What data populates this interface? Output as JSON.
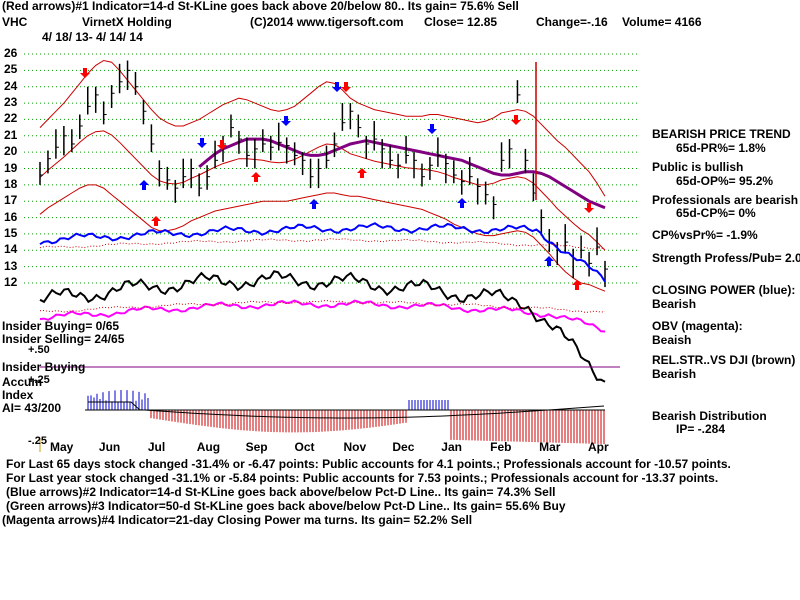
{
  "header": {
    "line1": "(Red arrows)#1 Indicator=14-d St-KLine goes back above 20/below 80.. Its gain= 75.6% Sell",
    "ticker": "VHC",
    "company": "VirnetX Holding",
    "copyright": "(C)2014 www.tigersoft.com",
    "close": "Close=  12.85",
    "change": "Change=-.16",
    "volume": "Volume= 4166",
    "date_range": "4/ 18/ 13-  4/ 14/ 14"
  },
  "right_panel": {
    "trend_title": "BEARISH PRICE TREND",
    "pr": "65d-PR%= 1.8%",
    "public_title": "Public is bullish",
    "op": "65d-OP%= 95.2%",
    "pros_title": "Professionals are bearish",
    "cp": "65d-CP%= 0%",
    "cpvspr": "CP%vsPr%= -1.9%",
    "strength": "Strength Profess/Pub= 2.0",
    "closing_power": "CLOSING POWER (blue):",
    "closing_power_val": "Bearish",
    "obv": "OBV (magenta):",
    "obv_val": "Beaish",
    "relstr": "REL.STR..VS DJI (brown)",
    "relstr_val": "Bearish",
    "distribution": "Bearish Distribution",
    "ip": "IP= -.284"
  },
  "left_panel": {
    "insider_buying": "Insider Buying= 0/65",
    "insider_selling": "Insider Selling= 24/65",
    "plus50": "+.50",
    "insider_buying2": "Insider Buying",
    "accum": "Accum",
    "plus25": "+.25",
    "index": "Index",
    "ai": "AI= 43/200",
    "minus25": "-.25"
  },
  "footer": {
    "line1": "For Last 65 days stock changed -31.4% or -6.47 points:  Public accounts for  4.1 points.;  Professionals account for -10.57 points.",
    "line2": "For Last year stock changed -31.1% or -5.84 points:  Public accounts for  7.53 points.;  Professionals account for -13.37 points.",
    "line3": "(Blue arrows)#2 Indicator=14-d St-KLine goes back above/below Pct-D Line.. Its gain= 74.3% Sell",
    "line4": "(Green arrows)#3 Indicator=50-d St-KLine goes back above/below Pct-D Line.. Its gain= 55.6% Buy",
    "line5": "(Magenta arrows)#4 Indicator=21-day Closing Power ma turns. Its gain= 52.2% Sell"
  },
  "chart_data": {
    "type": "line",
    "ylim": [
      11,
      26.5
    ],
    "y_ticks": [
      "26",
      "25",
      "24",
      "23",
      "22",
      "21",
      "20",
      "19",
      "18",
      "17",
      "16",
      "15",
      "14",
      "13",
      "12"
    ],
    "x_ticks": [
      "May",
      "Jun",
      "Jul",
      "Aug",
      "Sep",
      "Oct",
      "Nov",
      "Dec",
      "Jan",
      "Feb",
      "Mar",
      "Apr"
    ],
    "grid": true,
    "colors": {
      "price": "#000000",
      "bands": "#cc0000",
      "ma": "#800080",
      "closing_power": "#0000ff",
      "obv": "#ff00ff",
      "relstr": "#000000",
      "accum_pos": "#0000cc",
      "accum_neg": "#cc0000",
      "buy_arrow": "#0000ff",
      "sell_arrow": "#ff0000"
    },
    "price_close": [
      18.6,
      19.6,
      20.3,
      21.0,
      20.5,
      21.6,
      22.8,
      23.5,
      22.3,
      23.6,
      24.3,
      25.0,
      24.0,
      22.5,
      20.5,
      19.0,
      18.3,
      17.8,
      18.5,
      19.0,
      17.8,
      18.5,
      19.5,
      20.5,
      21.5,
      20.8,
      19.8,
      20.2,
      20.5,
      20.3,
      20.6,
      20.4,
      19.8,
      19.5,
      18.5,
      19.0,
      19.5,
      20.5,
      21.8,
      22.5,
      21.5,
      20.5,
      20.8,
      20.2,
      19.5,
      19.2,
      19.8,
      19.5,
      18.5,
      19.2,
      19.8,
      19.3,
      18.6,
      18.2,
      18.5,
      17.9,
      17.4,
      16.8,
      19.5,
      20.2,
      23.5,
      19.5,
      17.5,
      16.0,
      14.5,
      14.0,
      14.5,
      13.5,
      14.0,
      13.2,
      14.2,
      12.85
    ],
    "upper_band": [
      21.5,
      22.0,
      22.5,
      23.0,
      23.6,
      24.2,
      24.8,
      25.3,
      25.6,
      25.5,
      25.0,
      24.4,
      23.8,
      23.2,
      22.6,
      22.1,
      21.8,
      21.6,
      21.6,
      21.8,
      22.0,
      22.3,
      22.6,
      22.9,
      23.1,
      23.3,
      23.2,
      23.0,
      22.8,
      22.6,
      22.5,
      22.6,
      22.8,
      23.2,
      23.6,
      24.0,
      24.3,
      24.2,
      23.8,
      23.3,
      23.0,
      22.8,
      22.6,
      22.5,
      22.4,
      22.3,
      22.2,
      22.2,
      22.2,
      22.3,
      22.3,
      22.2,
      22.1,
      22.0,
      21.9,
      21.8,
      21.9,
      22.1,
      22.4,
      22.5,
      22.6,
      22.5,
      22.2,
      21.7,
      21.2,
      20.7,
      20.3,
      19.8,
      19.3,
      18.8,
      18.1,
      17.3
    ],
    "lower_band": [
      16.2,
      16.6,
      16.9,
      17.2,
      17.5,
      17.8,
      18.0,
      18.0,
      17.8,
      17.4,
      17.0,
      16.6,
      16.2,
      15.8,
      15.4,
      15.2,
      15.2,
      15.3,
      15.5,
      15.8,
      16.0,
      16.2,
      16.4,
      16.5,
      16.6,
      16.7,
      16.8,
      16.9,
      17.0,
      17.0,
      17.0,
      17.0,
      17.1,
      17.2,
      17.3,
      17.4,
      17.5,
      17.5,
      17.4,
      17.3,
      17.3,
      17.2,
      17.1,
      17.0,
      16.9,
      16.8,
      16.7,
      16.6,
      16.5,
      16.3,
      16.1,
      15.9,
      15.6,
      15.4,
      15.2,
      15.0,
      14.9,
      14.9,
      15.0,
      15.1,
      15.2,
      15.1,
      14.8,
      14.3,
      13.8,
      13.2,
      12.7,
      12.3,
      12.0,
      11.9,
      11.7,
      11.5
    ],
    "ma_line": [
      null,
      null,
      null,
      null,
      null,
      null,
      null,
      null,
      null,
      null,
      null,
      null,
      null,
      null,
      null,
      null,
      null,
      null,
      null,
      null,
      19.1,
      19.5,
      19.9,
      20.2,
      20.4,
      20.6,
      20.8,
      20.8,
      20.8,
      20.7,
      20.5,
      20.3,
      20.1,
      19.9,
      19.8,
      19.8,
      19.9,
      20.1,
      20.3,
      20.5,
      20.6,
      20.7,
      20.6,
      20.5,
      20.4,
      20.3,
      20.2,
      20.1,
      20.0,
      19.9,
      19.8,
      19.7,
      19.6,
      19.5,
      19.3,
      19.1,
      18.9,
      18.7,
      18.6,
      18.6,
      18.7,
      18.8,
      18.8,
      18.7,
      18.5,
      18.2,
      17.9,
      17.6,
      17.3,
      17.0,
      16.8,
      16.6
    ]
  }
}
